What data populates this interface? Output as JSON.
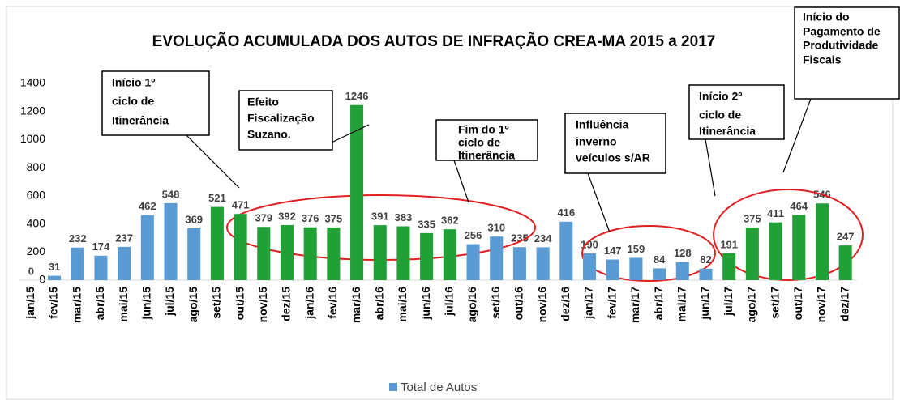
{
  "chart_data": {
    "type": "bar",
    "title": "EVOLUÇÃO ACUMULADA DOS AUTOS DE INFRAÇÃO CREA-MA 2015 a 2017",
    "categories": [
      "jan/15",
      "fev/15",
      "mar/15",
      "abr/15",
      "mai/15",
      "jun/15",
      "jul/15",
      "ago/15",
      "set/15",
      "out/15",
      "nov/15",
      "dez/15",
      "jan/16",
      "fev/16",
      "mar/16",
      "abr/16",
      "mai/16",
      "jun/16",
      "jul/16",
      "ago/16",
      "set/16",
      "out/16",
      "nov/16",
      "dez/16",
      "jan/17",
      "fev/17",
      "mar/17",
      "abr/17",
      "mai/17",
      "jun/17",
      "jul/17",
      "ago/17",
      "set/17",
      "out/17",
      "nov/17",
      "dez/17"
    ],
    "series": [
      {
        "name": "Total de Autos",
        "color": "#5b9bd5",
        "values": [
          0,
          31,
          232,
          174,
          237,
          462,
          548,
          369,
          521,
          471,
          379,
          392,
          376,
          375,
          1246,
          391,
          383,
          335,
          362,
          256,
          310,
          235,
          234,
          416,
          190,
          147,
          159,
          84,
          128,
          82,
          191,
          375,
          411,
          464,
          546,
          247
        ],
        "colors": [
          "#5b9bd5",
          "#5b9bd5",
          "#5b9bd5",
          "#5b9bd5",
          "#5b9bd5",
          "#5b9bd5",
          "#5b9bd5",
          "#5b9bd5",
          "#21a038",
          "#21a038",
          "#21a038",
          "#21a038",
          "#21a038",
          "#21a038",
          "#21a038",
          "#21a038",
          "#21a038",
          "#21a038",
          "#21a038",
          "#5b9bd5",
          "#5b9bd5",
          "#5b9bd5",
          "#5b9bd5",
          "#5b9bd5",
          "#5b9bd5",
          "#5b9bd5",
          "#5b9bd5",
          "#5b9bd5",
          "#5b9bd5",
          "#5b9bd5",
          "#21a038",
          "#21a038",
          "#21a038",
          "#21a038",
          "#21a038",
          "#21a038"
        ]
      }
    ],
    "ylim": [
      0,
      1400
    ],
    "yticks": [
      0,
      200,
      400,
      600,
      800,
      1000,
      1200,
      1400
    ],
    "legend": "bottom",
    "annotations": [
      {
        "lines": [
          "Início 1º",
          "ciclo de",
          "Itinerância"
        ]
      },
      {
        "lines": [
          "Efeito",
          "Fiscalização",
          "Suzano."
        ]
      },
      {
        "lines": [
          "Fim do 1º",
          "ciclo de",
          "Itinerância"
        ]
      },
      {
        "lines": [
          "Influência",
          "inverno",
          "veículos s/AR"
        ]
      },
      {
        "lines": [
          "Início 2º",
          "ciclo de",
          "Itinerância"
        ]
      },
      {
        "lines": [
          "Início do",
          "Pagamento de",
          "Produtividade",
          "Fiscais"
        ]
      }
    ]
  }
}
